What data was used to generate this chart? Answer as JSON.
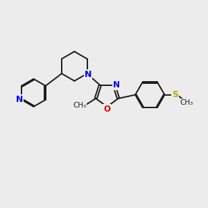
{
  "background_color": "#ececec",
  "bond_color": "#1a1a1a",
  "nitrogen_color": "#0000ee",
  "oxygen_color": "#dd0000",
  "sulfur_color": "#bbaa00",
  "figsize": [
    3.0,
    3.0
  ],
  "dpi": 100,
  "lw": 1.4,
  "dbo": 0.055,
  "xlim": [
    0,
    10
  ],
  "ylim": [
    0,
    10
  ]
}
